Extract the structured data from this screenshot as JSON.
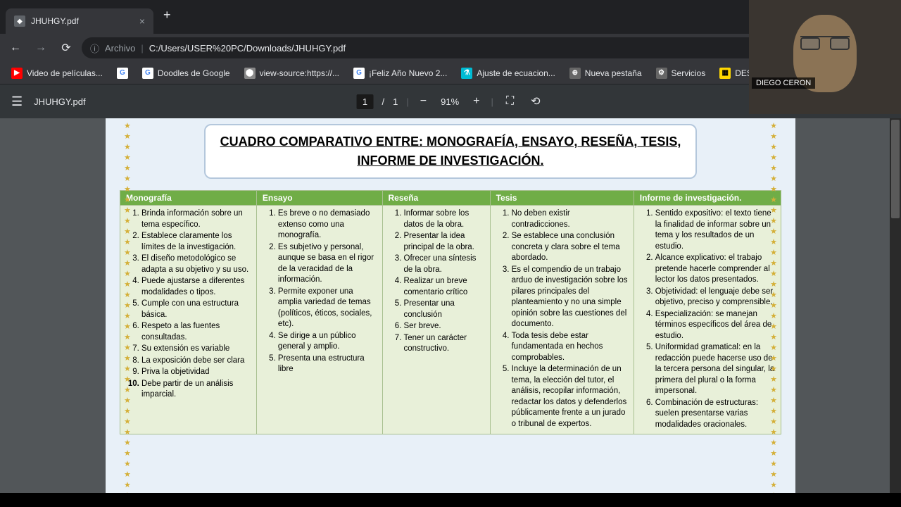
{
  "browser": {
    "tab_title": "JHUHGY.pdf",
    "url_prefix": "Archivo",
    "url_path": "C:/Users/USER%20PC/Downloads/JHUHGY.pdf",
    "bookmarks": [
      {
        "label": "Video de películas...",
        "iconClass": "bm-red",
        "iconText": "▶"
      },
      {
        "label": "",
        "iconClass": "bm-g",
        "iconText": "G"
      },
      {
        "label": "Doodles de Google",
        "iconClass": "bm-g",
        "iconText": "G"
      },
      {
        "label": "view-source:https://...",
        "iconClass": "bm-p",
        "iconText": "⬤"
      },
      {
        "label": "¡Feliz Año Nuevo 2...",
        "iconClass": "bm-g",
        "iconText": "G"
      },
      {
        "label": "Ajuste de ecuacion...",
        "iconClass": "bm-cy",
        "iconText": "⚗"
      },
      {
        "label": "Nueva pestaña",
        "iconClass": "bm-gear",
        "iconText": "⊕"
      },
      {
        "label": "Servicios",
        "iconClass": "bm-gear",
        "iconText": "⚙"
      },
      {
        "label": "DESARROLLO PERS...",
        "iconClass": "bm-y",
        "iconText": "▦"
      }
    ]
  },
  "pdf": {
    "filename": "JHUHGY.pdf",
    "page_current": "1",
    "page_total": "1",
    "zoom": "91%"
  },
  "webcam": {
    "name_label": "DIEGO CERON"
  },
  "document": {
    "title": "CUADRO COMPARATIVO ENTRE: MONOGRAFÍA, ENSAYO, RESEÑA, TESIS, INFORME DE INVESTIGACIÓN.",
    "table": {
      "header_bg": "#70ad47",
      "cell_bg": "#e8f0d9",
      "columns": [
        "Monografía",
        "Ensayo",
        "Reseña",
        "Tesis",
        "Informe de investigación."
      ],
      "widths": [
        "19%",
        "17.5%",
        "15%",
        "20%",
        "20.5%"
      ],
      "rows": [
        [
          "Brinda información sobre un tema específico.",
          "Establece claramente los límites de la investigación.",
          "El diseño metodológico se adapta a su objetivo y su uso.",
          "Puede ajustarse a diferentes modalidades o tipos.",
          "Cumple con una estructura básica.",
          "Respeto a las fuentes consultadas.",
          "Su extensión es variable",
          "La exposición debe ser clara",
          "Priva la objetividad",
          "Debe partir de un análisis imparcial."
        ],
        [
          "Es breve o no demasiado extenso como una monografía.",
          "Es subjetivo y personal, aunque se basa en el rigor de la veracidad de la información.",
          "Permite exponer una amplia variedad de temas (políticos, éticos, sociales, etc).",
          "Se dirige a un público general y amplio.",
          "Presenta una estructura libre"
        ],
        [
          "Informar sobre los datos de la obra.",
          "Presentar la idea principal de la obra.",
          "Ofrecer una síntesis de la obra.",
          "Realizar un breve comentario crítico",
          "Presentar una conclusión",
          "Ser breve.",
          "Tener un carácter constructivo."
        ],
        [
          "No deben existir contradicciones.",
          "Se establece una conclusión concreta y clara sobre el tema abordado.",
          "Es el compendio de un trabajo arduo de investigación sobre los pilares principales del planteamiento y no una simple opinión sobre las cuestiones del documento.",
          "Toda tesis debe estar fundamentada en hechos comprobables.",
          "Incluye la determinación de un tema, la elección del tutor, el análisis, recopilar información, redactar los datos y defenderlos públicamente frente a un jurado o tribunal de expertos."
        ],
        [
          "Sentido expositivo: el texto tiene la finalidad de informar sobre un tema y los resultados de un estudio.",
          "Alcance explicativo: el trabajo pretende hacerle comprender al lector los datos presentados.",
          "Objetividad: el lenguaje debe ser objetivo, preciso y comprensible.",
          "Especialización: se manejan términos específicos del área de estudio.",
          "Uniformidad gramatical: en la redacción puede hacerse uso de la tercera persona del singular, la primera del plural o la forma impersonal.",
          "Combinación de estructuras: suelen presentarse varias modalidades oracionales."
        ]
      ]
    }
  }
}
